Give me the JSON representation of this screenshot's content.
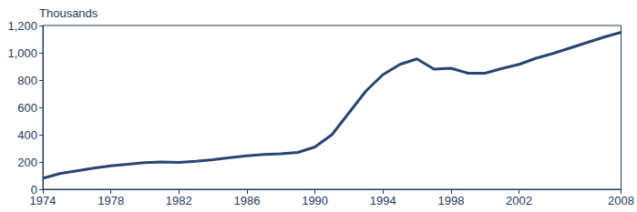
{
  "chart_data": {
    "type": "line",
    "title": "Thousands",
    "x": [
      1974,
      1975,
      1976,
      1977,
      1978,
      1979,
      1980,
      1981,
      1982,
      1983,
      1984,
      1985,
      1986,
      1987,
      1988,
      1989,
      1990,
      1991,
      1992,
      1993,
      1994,
      1995,
      1996,
      1997,
      1998,
      1999,
      2000,
      2001,
      2002,
      2003,
      2004,
      2005,
      2006,
      2007,
      2008
    ],
    "values": [
      80,
      115,
      135,
      155,
      172,
      183,
      195,
      200,
      197,
      205,
      217,
      232,
      245,
      255,
      260,
      270,
      310,
      400,
      560,
      720,
      840,
      915,
      955,
      880,
      887,
      850,
      850,
      885,
      915,
      960,
      995,
      1035,
      1075,
      1115,
      1150
    ],
    "color": "#284572",
    "xlim": [
      1974,
      2008
    ],
    "xticks": [
      1974,
      1978,
      1982,
      1986,
      1990,
      1994,
      1998,
      2002,
      2008
    ],
    "ylim": [
      0,
      1200
    ],
    "yticks": [
      0,
      200,
      400,
      600,
      800,
      {
        "value": 1000,
        "label": "1,000"
      },
      {
        "value": 1200,
        "label": "1,200"
      }
    ],
    "grid": false
  }
}
